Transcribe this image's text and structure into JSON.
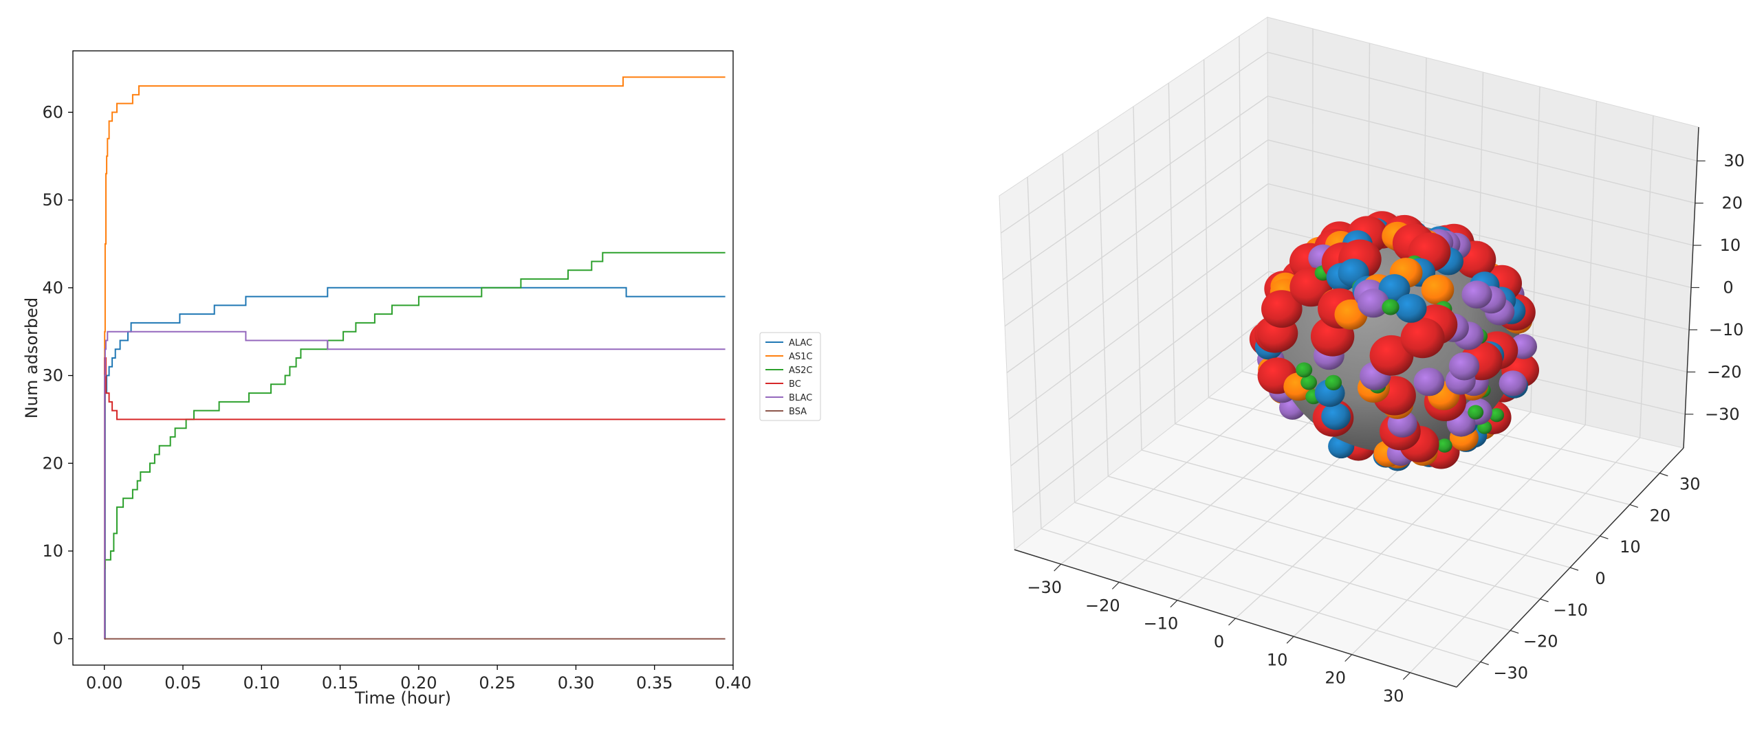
{
  "chart_data": [
    {
      "type": "line",
      "xlabel": "Time (hour)",
      "ylabel": "Num adsorbed",
      "xlim": [
        -0.02,
        0.4
      ],
      "ylim": [
        -3,
        67
      ],
      "xticks": [
        0.0,
        0.05,
        0.1,
        0.15,
        0.2,
        0.25,
        0.3,
        0.35,
        0.4
      ],
      "xtick_labels": [
        "0.00",
        "0.05",
        "0.10",
        "0.15",
        "0.20",
        "0.25",
        "0.30",
        "0.35",
        "0.40"
      ],
      "yticks": [
        0,
        10,
        20,
        30,
        40,
        50,
        60
      ],
      "ytick_labels": [
        "0",
        "10",
        "20",
        "30",
        "40",
        "50",
        "60"
      ],
      "grid": false,
      "legend_position": "outside-right",
      "series": [
        {
          "name": "ALAC",
          "color": "#1f77b4",
          "step": true,
          "points": [
            [
              0,
              0
            ],
            [
              0.0005,
              28
            ],
            [
              0.0015,
              30
            ],
            [
              0.003,
              31
            ],
            [
              0.005,
              32
            ],
            [
              0.007,
              33
            ],
            [
              0.01,
              34
            ],
            [
              0.015,
              35
            ],
            [
              0.017,
              36
            ],
            [
              0.048,
              37
            ],
            [
              0.07,
              38
            ],
            [
              0.09,
              39
            ],
            [
              0.142,
              40
            ],
            [
              0.332,
              39
            ],
            [
              0.395,
              39
            ]
          ]
        },
        {
          "name": "AS1C",
          "color": "#ff7f0e",
          "step": true,
          "points": [
            [
              0,
              0
            ],
            [
              0.0002,
              35
            ],
            [
              0.0005,
              45
            ],
            [
              0.001,
              53
            ],
            [
              0.0015,
              55
            ],
            [
              0.002,
              57
            ],
            [
              0.003,
              59
            ],
            [
              0.005,
              60
            ],
            [
              0.008,
              61
            ],
            [
              0.018,
              62
            ],
            [
              0.022,
              63
            ],
            [
              0.33,
              64
            ],
            [
              0.395,
              64
            ]
          ]
        },
        {
          "name": "AS2C",
          "color": "#2ca02c",
          "step": true,
          "points": [
            [
              0,
              0
            ],
            [
              0.0002,
              8
            ],
            [
              0.0005,
              9
            ],
            [
              0.004,
              10
            ],
            [
              0.006,
              12
            ],
            [
              0.008,
              15
            ],
            [
              0.012,
              16
            ],
            [
              0.018,
              17
            ],
            [
              0.021,
              18
            ],
            [
              0.023,
              19
            ],
            [
              0.029,
              20
            ],
            [
              0.032,
              21
            ],
            [
              0.035,
              22
            ],
            [
              0.042,
              23
            ],
            [
              0.045,
              24
            ],
            [
              0.052,
              25
            ],
            [
              0.057,
              26
            ],
            [
              0.073,
              27
            ],
            [
              0.092,
              28
            ],
            [
              0.106,
              29
            ],
            [
              0.115,
              30
            ],
            [
              0.118,
              31
            ],
            [
              0.122,
              32
            ],
            [
              0.125,
              33
            ],
            [
              0.142,
              34
            ],
            [
              0.152,
              35
            ],
            [
              0.16,
              36
            ],
            [
              0.172,
              37
            ],
            [
              0.183,
              38
            ],
            [
              0.2,
              39
            ],
            [
              0.24,
              40
            ],
            [
              0.265,
              41
            ],
            [
              0.295,
              42
            ],
            [
              0.31,
              43
            ],
            [
              0.317,
              44
            ],
            [
              0.395,
              44
            ]
          ]
        },
        {
          "name": "BC",
          "color": "#d62728",
          "step": true,
          "points": [
            [
              0,
              0
            ],
            [
              0.0002,
              32
            ],
            [
              0.001,
              28
            ],
            [
              0.003,
              27
            ],
            [
              0.005,
              26
            ],
            [
              0.008,
              25
            ],
            [
              0.395,
              25
            ]
          ]
        },
        {
          "name": "BLAC",
          "color": "#9467bd",
          "step": true,
          "points": [
            [
              0,
              0
            ],
            [
              0.0002,
              30
            ],
            [
              0.0005,
              33
            ],
            [
              0.001,
              34
            ],
            [
              0.002,
              35
            ],
            [
              0.09,
              34
            ],
            [
              0.142,
              33
            ],
            [
              0.395,
              33
            ]
          ]
        },
        {
          "name": "BSA",
          "color": "#8c564b",
          "step": true,
          "points": [
            [
              0,
              0
            ],
            [
              0.395,
              0
            ]
          ]
        }
      ]
    },
    {
      "type": "scatter",
      "projection": "3d",
      "xlim": [
        -38,
        38
      ],
      "ylim": [
        -38,
        38
      ],
      "zlim": [
        -38,
        38
      ],
      "xticks": [
        -30,
        -20,
        -10,
        0,
        10,
        20,
        30
      ],
      "xtick_labels": [
        "−30",
        "−20",
        "−10",
        "0",
        "10",
        "20",
        "30"
      ],
      "yticks": [
        -30,
        -20,
        -10,
        0,
        10,
        20,
        30
      ],
      "ytick_labels": [
        "−30",
        "−20",
        "−10",
        "0",
        "10",
        "20",
        "30"
      ],
      "zticks": [
        -30,
        -20,
        -10,
        0,
        10,
        20,
        30
      ],
      "ztick_labels": [
        "−30",
        "−20",
        "−10",
        "0",
        "10",
        "20",
        "30"
      ],
      "grid": true,
      "core_color": "#7f7f7f",
      "sphere_colors": {
        "blue": "#1f77b4",
        "orange": "#ff7f0e",
        "green": "#2ca02c",
        "red": "#d62728",
        "purple": "#9467bd"
      }
    }
  ]
}
